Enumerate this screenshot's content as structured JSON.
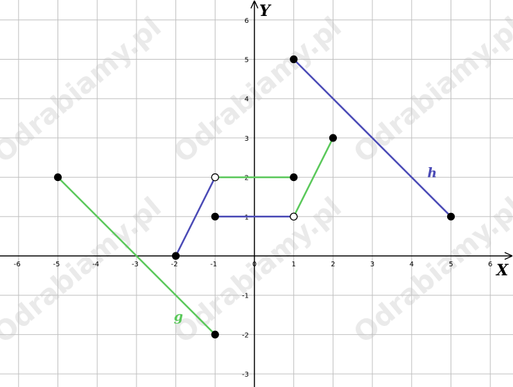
{
  "watermark": "Odrabiamy.pl",
  "chart_data": {
    "type": "line",
    "xlabel": "X",
    "ylabel": "Y",
    "xlim": [
      -6.4,
      6.6
    ],
    "ylim": [
      -3.3,
      6.5
    ],
    "grid": true,
    "x_ticks": [
      -6,
      -5,
      -4,
      -3,
      -2,
      -1,
      0,
      1,
      2,
      3,
      4,
      5,
      6
    ],
    "y_ticks": [
      -3,
      -2,
      -1,
      1,
      2,
      3,
      4,
      5,
      6
    ],
    "series": [
      {
        "name": "g",
        "color": "#5ac85a",
        "segments": [
          {
            "points": [
              [
                -5,
                2
              ],
              [
                -1,
                -2
              ]
            ],
            "endpoints": [
              "closed",
              "closed"
            ]
          },
          {
            "points": [
              [
                -1,
                2
              ],
              [
                1,
                2
              ]
            ],
            "endpoints": [
              "open",
              "closed"
            ]
          },
          {
            "points": [
              [
                1,
                1
              ],
              [
                2,
                3
              ]
            ],
            "endpoints": [
              "open",
              "closed"
            ]
          }
        ],
        "label_position": [
          -2.05,
          -1.65
        ]
      },
      {
        "name": "h",
        "color": "#4a4ab6",
        "segments": [
          {
            "points": [
              [
                -2,
                0
              ],
              [
                -1,
                2
              ]
            ],
            "endpoints": [
              "closed",
              "open"
            ]
          },
          {
            "points": [
              [
                -1,
                1
              ],
              [
                1,
                1
              ]
            ],
            "endpoints": [
              "closed",
              "open"
            ]
          },
          {
            "points": [
              [
                1,
                5
              ],
              [
                5,
                1
              ]
            ],
            "endpoints": [
              "closed",
              "closed"
            ]
          }
        ],
        "label_position": [
          4.4,
          2.0
        ]
      }
    ]
  }
}
